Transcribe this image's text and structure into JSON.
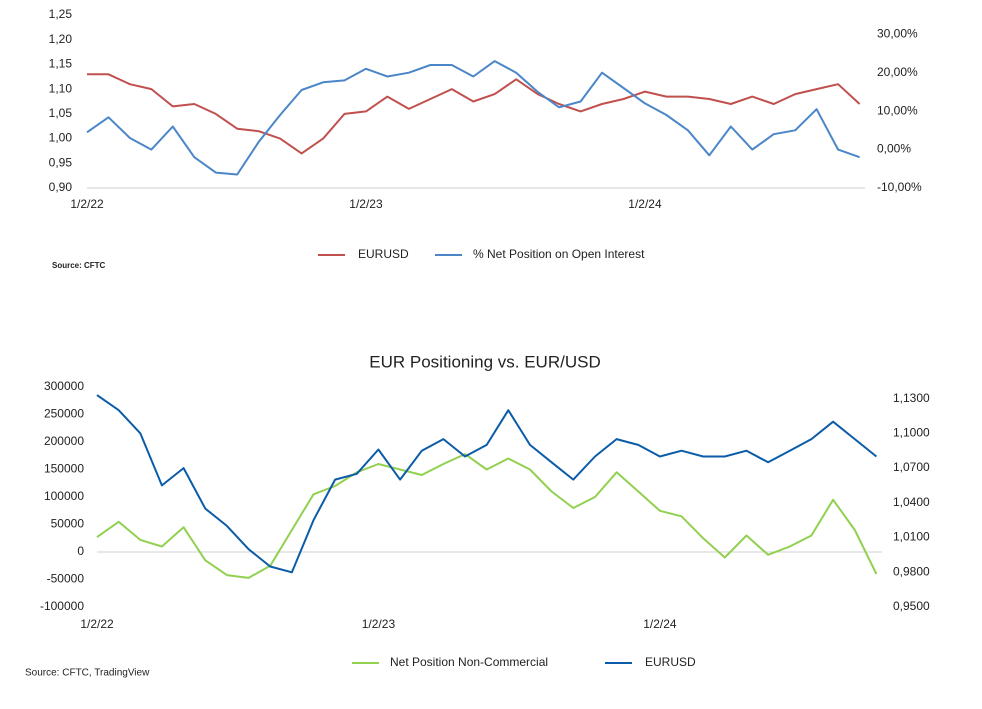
{
  "chart_data": [
    {
      "type": "line",
      "source": "Source: CFTC",
      "categories": [
        "1/2/22",
        null,
        null,
        null,
        null,
        null,
        null,
        null,
        null,
        null,
        null,
        null,
        null,
        "1/2/23",
        null,
        null,
        null,
        null,
        null,
        null,
        null,
        null,
        null,
        null,
        null,
        null,
        "1/2/24",
        null,
        null,
        null,
        null,
        null,
        null,
        null,
        null,
        null,
        null
      ],
      "series": [
        {
          "name": "EURUSD",
          "color": "#c0504d",
          "axis": "y",
          "values": [
            1.13,
            1.13,
            1.11,
            1.1,
            1.065,
            1.07,
            1.05,
            1.02,
            1.015,
            1.0,
            0.97,
            1.0,
            1.05,
            1.055,
            1.085,
            1.06,
            1.08,
            1.1,
            1.075,
            1.09,
            1.12,
            1.09,
            1.07,
            1.055,
            1.07,
            1.08,
            1.095,
            1.085,
            1.085,
            1.08,
            1.07,
            1.085,
            1.07,
            1.09,
            1.1,
            1.11,
            1.07
          ]
        },
        {
          "name": "% Net Position on Open Interest",
          "color": "#4a86c8",
          "axis": "y2",
          "values": [
            4.5,
            8.4,
            3,
            0,
            6,
            -2,
            -6,
            -6.5,
            2,
            9,
            15.5,
            17.5,
            18,
            21,
            19,
            20,
            22,
            22,
            19,
            23,
            20,
            15,
            11,
            12.5,
            20,
            16,
            12,
            9,
            5,
            -1.5,
            6,
            0,
            4,
            5,
            10.5,
            0,
            -2
          ]
        }
      ],
      "ylim": [
        0.9,
        1.25
      ],
      "yticks": [
        {
          "value": 0.9,
          "label": "0,90"
        },
        {
          "value": 0.95,
          "label": "0,95"
        },
        {
          "value": 1.0,
          "label": "1,00"
        },
        {
          "value": 1.05,
          "label": "1,05"
        },
        {
          "value": 1.1,
          "label": "1,10"
        },
        {
          "value": 1.15,
          "label": "1,15"
        },
        {
          "value": 1.2,
          "label": "1,20"
        },
        {
          "value": 1.25,
          "label": "1,25"
        }
      ],
      "y2lim": [
        -10,
        35
      ],
      "y2ticks": [
        {
          "value": -10,
          "label": "-10,00%"
        },
        {
          "value": 0,
          "label": "0,00%"
        },
        {
          "value": 10,
          "label": "10,00%"
        },
        {
          "value": 20,
          "label": "20,00%"
        },
        {
          "value": 30,
          "label": "30,00%"
        }
      ]
    },
    {
      "type": "line",
      "title": "EUR Positioning vs. EUR/USD",
      "source": "Source: CFTC, TradingView",
      "categories": [
        "1/2/22",
        null,
        null,
        null,
        null,
        null,
        null,
        null,
        null,
        null,
        null,
        null,
        null,
        "1/2/23",
        null,
        null,
        null,
        null,
        null,
        null,
        null,
        null,
        null,
        null,
        null,
        null,
        "1/2/24",
        null,
        null,
        null,
        null,
        null,
        null,
        null,
        null,
        null,
        null
      ],
      "series": [
        {
          "name": "Net Position Non-Commercial",
          "color": "#92d050",
          "axis": "y",
          "values": [
            27000,
            55000,
            22000,
            10000,
            45000,
            -15000,
            -42000,
            -47000,
            -25000,
            40000,
            105000,
            120000,
            145000,
            160000,
            150000,
            140000,
            160000,
            178000,
            150000,
            170000,
            150000,
            110000,
            80000,
            100000,
            145000,
            110000,
            75000,
            65000,
            25000,
            -10000,
            30000,
            -5000,
            10000,
            30000,
            95000,
            40000,
            -40000
          ]
        },
        {
          "name": "EURUSD",
          "color": "#0b5ca8",
          "axis": "y2",
          "values": [
            1.133,
            1.12,
            1.1,
            1.055,
            1.07,
            1.035,
            1.02,
            1.0,
            0.985,
            0.98,
            1.025,
            1.06,
            1.065,
            1.086,
            1.06,
            1.085,
            1.095,
            1.08,
            1.09,
            1.12,
            1.09,
            1.075,
            1.06,
            1.08,
            1.095,
            1.09,
            1.08,
            1.085,
            1.08,
            1.08,
            1.085,
            1.075,
            1.085,
            1.095,
            1.11,
            1.095,
            1.08
          ]
        }
      ],
      "ylim": [
        -100000,
        300000
      ],
      "yticks": [
        -100000,
        -50000,
        0,
        50000,
        100000,
        150000,
        200000,
        250000,
        300000
      ],
      "y2lim": [
        0.95,
        1.14
      ],
      "y2ticks": [
        {
          "value": 0.95,
          "label": "0,9500"
        },
        {
          "value": 0.98,
          "label": "0,9800"
        },
        {
          "value": 1.01,
          "label": "1,0100"
        },
        {
          "value": 1.04,
          "label": "1,0400"
        },
        {
          "value": 1.07,
          "label": "1,0700"
        },
        {
          "value": 1.1,
          "label": "1,1000"
        },
        {
          "value": 1.13,
          "label": "1,1300"
        }
      ]
    }
  ]
}
